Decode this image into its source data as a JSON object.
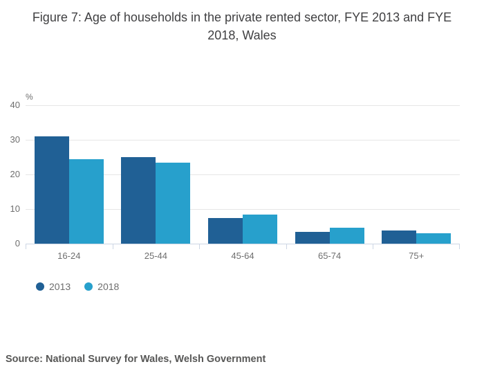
{
  "title": "Figure 7: Age of households in the private rented sector, FYE 2013 and FYE 2018, Wales",
  "source": "Source: National Survey for Wales, Welsh Government",
  "colors": {
    "series_2013": "#206095",
    "series_2018": "#27a0cc",
    "gridline": "#e6e6e6",
    "axis_line": "#ccd6e4",
    "title_text": "#404042",
    "axis_text": "#6e6e6e",
    "source_text": "#575756"
  },
  "chart_data": {
    "type": "bar",
    "title": "Figure 7: Age of households in the private rented sector, FYE 2013 and FYE 2018, Wales",
    "xlabel": "",
    "ylabel": "%",
    "categories": [
      "16-24",
      "25-44",
      "45-64",
      "65-74",
      "75+"
    ],
    "series": [
      {
        "name": "2013",
        "color": "#206095",
        "values": [
          31,
          25,
          7.4,
          3.5,
          3.9
        ]
      },
      {
        "name": "2018",
        "color": "#27a0cc",
        "values": [
          24.5,
          23.4,
          8.5,
          4.7,
          3.1
        ]
      }
    ],
    "ylim": [
      0,
      40
    ],
    "yticks": [
      0,
      10,
      20,
      30,
      40
    ],
    "grid": true,
    "legend_position": "bottom-left",
    "legend_marker": "circle"
  }
}
